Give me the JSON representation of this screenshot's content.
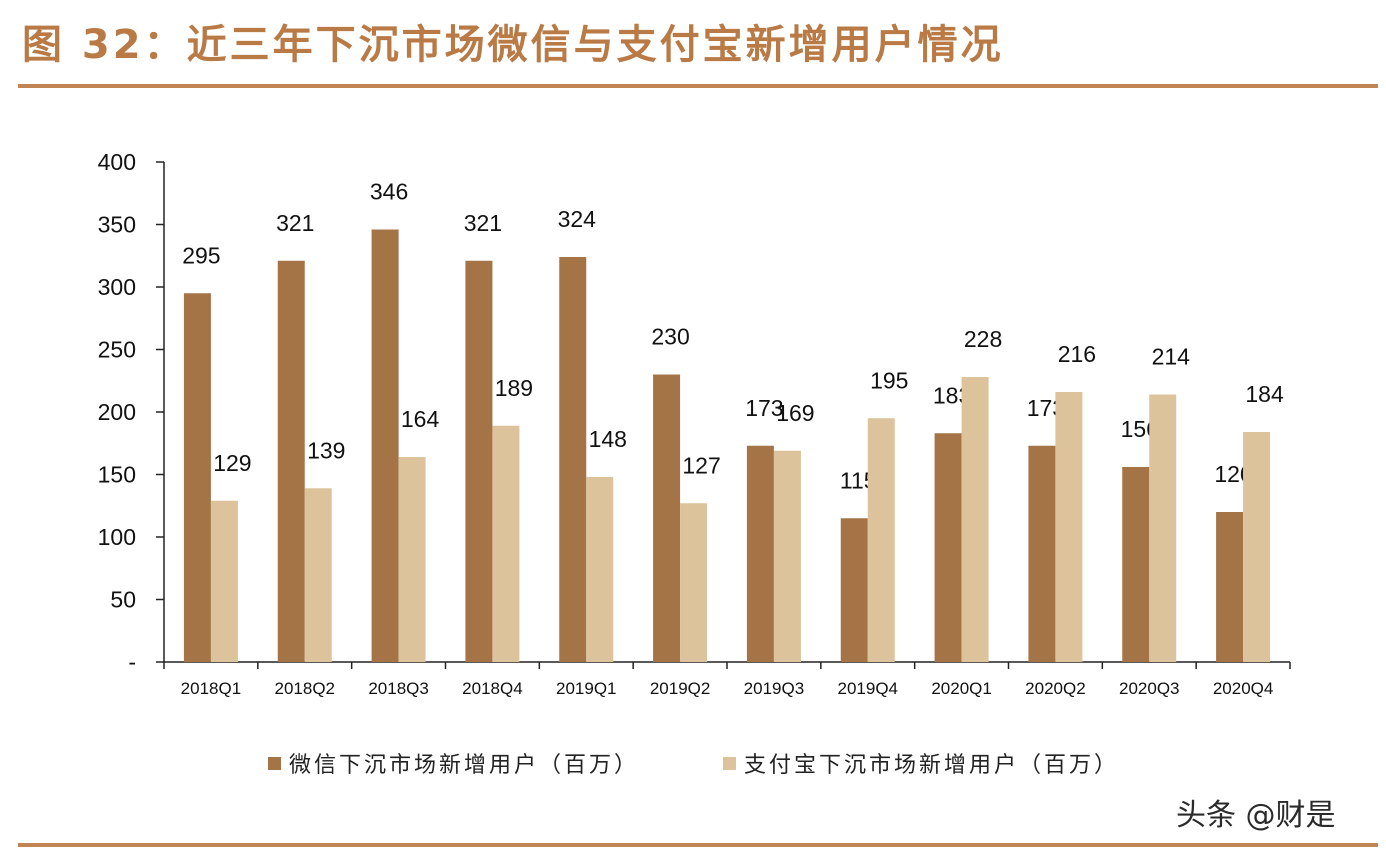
{
  "title": "图 32：近三年下沉市场微信与支付宝新增用户情况",
  "watermark": "头条 @财是",
  "colors": {
    "rule": "#c08552",
    "title": "#b97a45",
    "wechat": "#a47447",
    "alipay": "#dcc39b"
  },
  "chart_data": {
    "type": "bar",
    "categories": [
      "2018Q1",
      "2018Q2",
      "2018Q3",
      "2018Q4",
      "2019Q1",
      "2019Q2",
      "2019Q3",
      "2019Q4",
      "2020Q1",
      "2020Q2",
      "2020Q3",
      "2020Q4"
    ],
    "series": [
      {
        "name": "微信下沉市场新增用户（百万）",
        "color": "#a47447",
        "values": [
          295,
          321,
          346,
          321,
          324,
          230,
          173,
          115,
          183,
          173,
          156,
          120
        ]
      },
      {
        "name": "支付宝下沉市场新增用户（百万）",
        "color": "#dcc39b",
        "values": [
          129,
          139,
          164,
          189,
          148,
          127,
          169,
          195,
          228,
          216,
          214,
          184
        ]
      }
    ],
    "ylim": [
      0,
      400
    ],
    "yticks": [
      "-",
      "50",
      "100",
      "150",
      "200",
      "250",
      "300",
      "350",
      "400"
    ],
    "grid": false,
    "legend_position": "bottom"
  }
}
